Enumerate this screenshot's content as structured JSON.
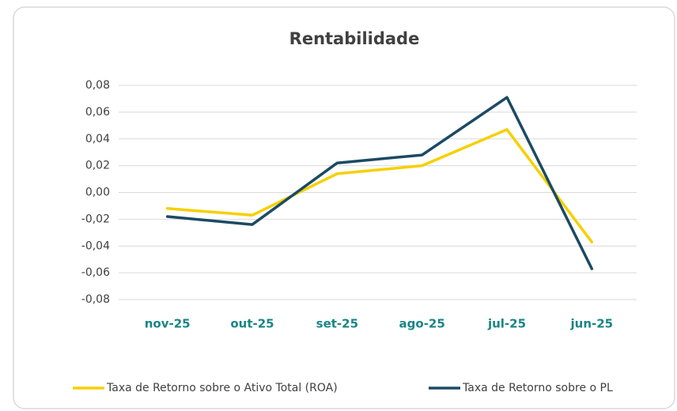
{
  "chart_data": {
    "type": "line",
    "title": "Rentabilidade",
    "categories": [
      "nov-25",
      "out-25",
      "set-25",
      "ago-25",
      "jul-25",
      "jun-25"
    ],
    "series": [
      {
        "name": "Taxa de Retorno sobre o Ativo Total (ROA)",
        "color": "#f5d000",
        "values": [
          -0.012,
          -0.017,
          0.014,
          0.02,
          0.047,
          -0.037
        ]
      },
      {
        "name": "Taxa de Retorno sobre o PL",
        "color": "#1b4a63",
        "values": [
          -0.018,
          -0.024,
          0.022,
          0.028,
          0.071,
          -0.057
        ]
      }
    ],
    "ylim": [
      -0.08,
      0.08
    ],
    "yticks": [
      {
        "value": 0.08,
        "label": "0,08"
      },
      {
        "value": 0.06,
        "label": "0,06"
      },
      {
        "value": 0.04,
        "label": "0,04"
      },
      {
        "value": 0.02,
        "label": "0,02"
      },
      {
        "value": 0,
        "label": "0,00"
      },
      {
        "value": -0.02,
        "label": "-0,02"
      },
      {
        "value": -0.04,
        "label": "-0,04"
      },
      {
        "value": -0.06,
        "label": "-0,06"
      },
      {
        "value": -0.08,
        "label": "-0,08"
      }
    ],
    "grid": true,
    "legend": "bottom"
  }
}
